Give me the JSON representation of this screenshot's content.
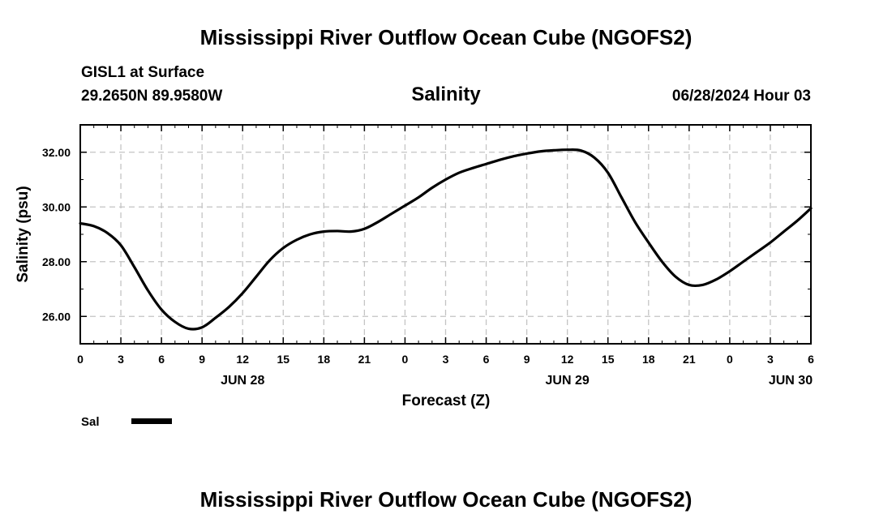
{
  "page": {
    "title_top": "Mississippi River Outflow Ocean Cube (NGOFS2)",
    "title_bottom": "Mississippi River Outflow Ocean Cube (NGOFS2)",
    "station": "GISL1 at Surface",
    "location": "29.2650N  89.9580W",
    "datetime": "06/28/2024 Hour 03"
  },
  "chart_data": {
    "type": "line",
    "title": "Salinity",
    "xlabel": "Forecast (Z)",
    "ylabel": "Salinity (psu)",
    "xlim": [
      0,
      54
    ],
    "ylim": [
      25,
      33
    ],
    "grid": true,
    "x_tick_values": [
      0,
      3,
      6,
      9,
      12,
      15,
      18,
      21,
      24,
      27,
      30,
      33,
      36,
      39,
      42,
      45,
      48,
      51,
      54
    ],
    "x_tick_labels": [
      "0",
      "3",
      "6",
      "9",
      "12",
      "15",
      "18",
      "21",
      "0",
      "3",
      "6",
      "9",
      "12",
      "15",
      "18",
      "21",
      "0",
      "3",
      "6"
    ],
    "y_tick_values": [
      26,
      28,
      30,
      32
    ],
    "y_tick_labels": [
      "26.00",
      "28.00",
      "30.00",
      "32.00"
    ],
    "date_labels": [
      {
        "x": 12,
        "label": "JUN 28"
      },
      {
        "x": 36,
        "label": "JUN 29"
      },
      {
        "x": 52.5,
        "label": "JUN 30"
      }
    ],
    "legend": {
      "placement": "bottom-left",
      "entries": [
        "Sal"
      ]
    },
    "series": [
      {
        "name": "Sal",
        "color": "#000000",
        "x": [
          0,
          1,
          2,
          3,
          4,
          5,
          6,
          7,
          8,
          9,
          10,
          11,
          12,
          13,
          14,
          15,
          16,
          17,
          18,
          19,
          20,
          21,
          22,
          23,
          24,
          25,
          26,
          27,
          28,
          29,
          30,
          31,
          32,
          33,
          34,
          35,
          36,
          37,
          38,
          39,
          40,
          41,
          42,
          43,
          44,
          45,
          46,
          47,
          48,
          49,
          50,
          51,
          52,
          53,
          54
        ],
        "values": [
          29.4,
          29.3,
          29.05,
          28.6,
          27.8,
          26.95,
          26.25,
          25.8,
          25.55,
          25.6,
          25.95,
          26.35,
          26.85,
          27.45,
          28.05,
          28.5,
          28.8,
          29.0,
          29.1,
          29.12,
          29.1,
          29.2,
          29.45,
          29.75,
          30.05,
          30.35,
          30.7,
          31.0,
          31.25,
          31.42,
          31.57,
          31.72,
          31.85,
          31.95,
          32.03,
          32.07,
          32.09,
          32.06,
          31.8,
          31.25,
          30.35,
          29.45,
          28.7,
          28.0,
          27.45,
          27.15,
          27.15,
          27.35,
          27.65,
          28.0,
          28.35,
          28.7,
          29.1,
          29.5,
          29.95
        ]
      }
    ]
  }
}
